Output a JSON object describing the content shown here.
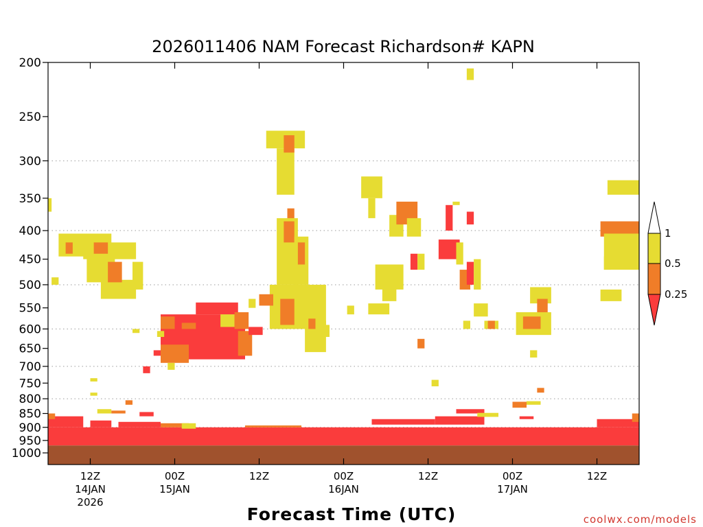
{
  "chart_data": {
    "type": "heatmap",
    "title": "2026011406 NAM Forecast Richardson# KAPN",
    "xlabel": "Forecast Time (UTC)",
    "ylabel": "",
    "credit": "coolwx.com/models",
    "y_axis": {
      "scale": "log-pressure",
      "range": [
        1000,
        200
      ],
      "reversed": true,
      "ticks": [
        "200",
        "250",
        "300",
        "350",
        "400",
        "450",
        "500",
        "550",
        "600",
        "650",
        "700",
        "750",
        "800",
        "850",
        "900",
        "950",
        "1000"
      ],
      "tick_values": [
        200,
        250,
        300,
        350,
        400,
        450,
        500,
        550,
        600,
        650,
        700,
        750,
        800,
        850,
        900,
        950,
        1000
      ],
      "grid_levels": [
        300,
        400,
        500,
        600,
        700,
        800,
        900,
        1000
      ]
    },
    "x_axis": {
      "range_hours": [
        0,
        84
      ],
      "ticks": [
        {
          "hour": 6,
          "lines": [
            "12Z",
            "14JAN",
            "2026"
          ]
        },
        {
          "hour": 18,
          "lines": [
            "00Z",
            "15JAN"
          ]
        },
        {
          "hour": 30,
          "lines": [
            "12Z"
          ]
        },
        {
          "hour": 42,
          "lines": [
            "00Z",
            "16JAN"
          ]
        },
        {
          "hour": 54,
          "lines": [
            "12Z"
          ]
        },
        {
          "hour": 66,
          "lines": [
            "00Z",
            "17JAN"
          ]
        },
        {
          "hour": 78,
          "lines": [
            "12Z"
          ]
        }
      ]
    },
    "legend": {
      "position": "right",
      "labels": [
        "1",
        "0.5",
        "0.25"
      ],
      "bins": [
        {
          "range": "0.5-1",
          "color": "#e6dc32"
        },
        {
          "range": "0.25-0.5",
          "color": "#f07d28"
        },
        {
          "range": "<0.25",
          "color": "#fa3c3c"
        }
      ]
    },
    "colors": {
      "band_high": "#e6dc32",
      "band_mid": "#f07d28",
      "band_low": "#fa3c3c",
      "ground": "#a0522d"
    },
    "ground_below_hpa": 970,
    "regions": [
      {
        "t": [
          0,
          84
        ],
        "p": [
          970,
          900
        ],
        "cls": "low"
      },
      {
        "t": [
          0,
          5
        ],
        "p": [
          900,
          860
        ],
        "cls": "low"
      },
      {
        "t": [
          6,
          9
        ],
        "p": [
          900,
          875
        ],
        "cls": "low"
      },
      {
        "t": [
          10,
          16
        ],
        "p": [
          900,
          880
        ],
        "cls": "low"
      },
      {
        "t": [
          16,
          20
        ],
        "p": [
          900,
          885
        ],
        "cls": "mid"
      },
      {
        "t": [
          19,
          21
        ],
        "p": [
          905,
          885
        ],
        "cls": "high"
      },
      {
        "t": [
          28,
          36
        ],
        "p": [
          900,
          893
        ],
        "cls": "mid"
      },
      {
        "t": [
          46,
          55
        ],
        "p": [
          890,
          870
        ],
        "cls": "low"
      },
      {
        "t": [
          55,
          62
        ],
        "p": [
          890,
          860
        ],
        "cls": "low"
      },
      {
        "t": [
          58,
          62
        ],
        "p": [
          850,
          835
        ],
        "cls": "low"
      },
      {
        "t": [
          61,
          64
        ],
        "p": [
          862,
          848
        ],
        "cls": "high"
      },
      {
        "t": [
          66,
          68
        ],
        "p": [
          830,
          810
        ],
        "cls": "mid"
      },
      {
        "t": [
          68,
          70
        ],
        "p": [
          820,
          808
        ],
        "cls": "high"
      },
      {
        "t": [
          67,
          69
        ],
        "p": [
          870,
          860
        ],
        "cls": "low"
      },
      {
        "t": [
          78,
          84
        ],
        "p": [
          900,
          870
        ],
        "cls": "low"
      },
      {
        "t": [
          83,
          84
        ],
        "p": [
          880,
          850
        ],
        "cls": "mid"
      },
      {
        "t": [
          0,
          1
        ],
        "p": [
          870,
          850
        ],
        "cls": "mid"
      },
      {
        "t": [
          7,
          9
        ],
        "p": [
          850,
          835
        ],
        "cls": "high"
      },
      {
        "t": [
          9,
          11
        ],
        "p": [
          850,
          840
        ],
        "cls": "mid"
      },
      {
        "t": [
          11,
          12
        ],
        "p": [
          820,
          805
        ],
        "cls": "mid"
      },
      {
        "t": [
          13,
          15
        ],
        "p": [
          860,
          845
        ],
        "cls": "low"
      },
      {
        "t": [
          6,
          7
        ],
        "p": [
          790,
          780
        ],
        "cls": "high"
      },
      {
        "t": [
          6,
          7
        ],
        "p": [
          745,
          735
        ],
        "cls": "high"
      },
      {
        "t": [
          1.5,
          9
        ],
        "p": [
          445,
          405
        ],
        "cls": "high"
      },
      {
        "t": [
          5,
          12.5
        ],
        "p": [
          450,
          420
        ],
        "cls": "high"
      },
      {
        "t": [
          5.5,
          9.5
        ],
        "p": [
          495,
          440
        ],
        "cls": "high"
      },
      {
        "t": [
          7.5,
          12.5
        ],
        "p": [
          530,
          490
        ],
        "cls": "high"
      },
      {
        "t": [
          12,
          13.5
        ],
        "p": [
          510,
          455
        ],
        "cls": "high"
      },
      {
        "t": [
          6.5,
          8.5
        ],
        "p": [
          440,
          420
        ],
        "cls": "mid"
      },
      {
        "t": [
          8.5,
          10.5
        ],
        "p": [
          495,
          455
        ],
        "cls": "mid"
      },
      {
        "t": [
          2.5,
          3.5
        ],
        "p": [
          440,
          420
        ],
        "cls": "mid"
      },
      {
        "t": [
          0.5,
          1.5
        ],
        "p": [
          500,
          485
        ],
        "cls": "high"
      },
      {
        "t": [
          0,
          0.5
        ],
        "p": [
          370,
          350
        ],
        "cls": "high"
      },
      {
        "t": [
          16,
          28
        ],
        "p": [
          680,
          565
        ],
        "cls": "low"
      },
      {
        "t": [
          21,
          27
        ],
        "p": [
          565,
          538
        ],
        "cls": "low"
      },
      {
        "t": [
          24.5,
          26.5
        ],
        "p": [
          595,
          565
        ],
        "cls": "high"
      },
      {
        "t": [
          16,
          18
        ],
        "p": [
          600,
          570
        ],
        "cls": "mid"
      },
      {
        "t": [
          16,
          20
        ],
        "p": [
          690,
          640
        ],
        "cls": "mid"
      },
      {
        "t": [
          27,
          29
        ],
        "p": [
          670,
          605
        ],
        "cls": "mid"
      },
      {
        "t": [
          26.5,
          28.5
        ],
        "p": [
          600,
          560
        ],
        "cls": "mid"
      },
      {
        "t": [
          19,
          21
        ],
        "p": [
          600,
          585
        ],
        "cls": "mid"
      },
      {
        "t": [
          15.5,
          16.5
        ],
        "p": [
          620,
          605
        ],
        "cls": "high"
      },
      {
        "t": [
          17,
          18
        ],
        "p": [
          710,
          690
        ],
        "cls": "high"
      },
      {
        "t": [
          12,
          13
        ],
        "p": [
          610,
          600
        ],
        "cls": "high"
      },
      {
        "t": [
          13.5,
          14.5
        ],
        "p": [
          720,
          700
        ],
        "cls": "low"
      },
      {
        "t": [
          15,
          16
        ],
        "p": [
          670,
          655
        ],
        "cls": "low"
      },
      {
        "t": [
          28.5,
          30.5
        ],
        "p": [
          615,
          595
        ],
        "cls": "low"
      },
      {
        "t": [
          31,
          36.5
        ],
        "p": [
          285,
          265
        ],
        "cls": "high"
      },
      {
        "t": [
          32.5,
          35
        ],
        "p": [
          345,
          285
        ],
        "cls": "high"
      },
      {
        "t": [
          33.5,
          35
        ],
        "p": [
          290,
          270
        ],
        "cls": "mid"
      },
      {
        "t": [
          34,
          35
        ],
        "p": [
          390,
          365
        ],
        "cls": "mid"
      },
      {
        "t": [
          32.5,
          35.5
        ],
        "p": [
          500,
          380
        ],
        "cls": "high"
      },
      {
        "t": [
          33.5,
          35
        ],
        "p": [
          420,
          385
        ],
        "cls": "mid"
      },
      {
        "t": [
          35,
          37
        ],
        "p": [
          500,
          410
        ],
        "cls": "high"
      },
      {
        "t": [
          35.5,
          36.5
        ],
        "p": [
          460,
          420
        ],
        "cls": "mid"
      },
      {
        "t": [
          31.5,
          39.5
        ],
        "p": [
          600,
          500
        ],
        "cls": "high"
      },
      {
        "t": [
          33,
          35
        ],
        "p": [
          590,
          530
        ],
        "cls": "mid"
      },
      {
        "t": [
          30,
          32
        ],
        "p": [
          545,
          520
        ],
        "cls": "mid"
      },
      {
        "t": [
          36.5,
          39.5
        ],
        "p": [
          660,
          580
        ],
        "cls": "high"
      },
      {
        "t": [
          37,
          38
        ],
        "p": [
          600,
          575
        ],
        "cls": "mid"
      },
      {
        "t": [
          39,
          40
        ],
        "p": [
          620,
          590
        ],
        "cls": "high"
      },
      {
        "t": [
          42.5,
          43.5
        ],
        "p": [
          565,
          545
        ],
        "cls": "high"
      },
      {
        "t": [
          28.5,
          29.5
        ],
        "p": [
          550,
          530
        ],
        "cls": "high"
      },
      {
        "t": [
          44.5,
          47.5
        ],
        "p": [
          350,
          320
        ],
        "cls": "high"
      },
      {
        "t": [
          45.5,
          46.5
        ],
        "p": [
          380,
          350
        ],
        "cls": "high"
      },
      {
        "t": [
          48.5,
          50.5
        ],
        "p": [
          410,
          375
        ],
        "cls": "high"
      },
      {
        "t": [
          49.5,
          52.5
        ],
        "p": [
          390,
          355
        ],
        "cls": "mid"
      },
      {
        "t": [
          51,
          53
        ],
        "p": [
          410,
          380
        ],
        "cls": "high"
      },
      {
        "t": [
          46.5,
          50.5
        ],
        "p": [
          510,
          460
        ],
        "cls": "high"
      },
      {
        "t": [
          47.5,
          49.5
        ],
        "p": [
          535,
          500
        ],
        "cls": "high"
      },
      {
        "t": [
          45.5,
          48.5
        ],
        "p": [
          565,
          540
        ],
        "cls": "high"
      },
      {
        "t": [
          51.5,
          52.5
        ],
        "p": [
          470,
          440
        ],
        "cls": "low"
      },
      {
        "t": [
          52.5,
          53.5
        ],
        "p": [
          470,
          440
        ],
        "cls": "high"
      },
      {
        "t": [
          55.5,
          58.5
        ],
        "p": [
          450,
          415
        ],
        "cls": "low"
      },
      {
        "t": [
          56.5,
          57.5
        ],
        "p": [
          400,
          360
        ],
        "cls": "low"
      },
      {
        "t": [
          59.5,
          60.5
        ],
        "p": [
          390,
          370
        ],
        "cls": "low"
      },
      {
        "t": [
          57.5,
          58.5
        ],
        "p": [
          360,
          355
        ],
        "cls": "high"
      },
      {
        "t": [
          58,
          59
        ],
        "p": [
          460,
          420
        ],
        "cls": "high"
      },
      {
        "t": [
          58.5,
          60
        ],
        "p": [
          510,
          470
        ],
        "cls": "mid"
      },
      {
        "t": [
          59.5,
          60.5
        ],
        "p": [
          500,
          455
        ],
        "cls": "low"
      },
      {
        "t": [
          60.5,
          61.5
        ],
        "p": [
          510,
          450
        ],
        "cls": "high"
      },
      {
        "t": [
          59.5,
          60.5
        ],
        "p": [
          215,
          205
        ],
        "cls": "high"
      },
      {
        "t": [
          52.5,
          53.5
        ],
        "p": [
          650,
          625
        ],
        "cls": "mid"
      },
      {
        "t": [
          54.5,
          55.5
        ],
        "p": [
          760,
          740
        ],
        "cls": "high"
      },
      {
        "t": [
          59,
          60
        ],
        "p": [
          600,
          580
        ],
        "cls": "high"
      },
      {
        "t": [
          60.5,
          62.5
        ],
        "p": [
          570,
          540
        ],
        "cls": "high"
      },
      {
        "t": [
          62,
          64
        ],
        "p": [
          600,
          580
        ],
        "cls": "high"
      },
      {
        "t": [
          62.5,
          63.5
        ],
        "p": [
          600,
          580
        ],
        "cls": "mid"
      },
      {
        "t": [
          66.5,
          71.5
        ],
        "p": [
          615,
          560
        ],
        "cls": "high"
      },
      {
        "t": [
          67.5,
          70
        ],
        "p": [
          600,
          570
        ],
        "cls": "mid"
      },
      {
        "t": [
          68.5,
          71.5
        ],
        "p": [
          540,
          505
        ],
        "cls": "high"
      },
      {
        "t": [
          69.5,
          71
        ],
        "p": [
          560,
          530
        ],
        "cls": "mid"
      },
      {
        "t": [
          68.5,
          69.5
        ],
        "p": [
          675,
          655
        ],
        "cls": "high"
      },
      {
        "t": [
          69.5,
          70.5
        ],
        "p": [
          780,
          765
        ],
        "cls": "mid"
      },
      {
        "t": [
          79.5,
          84
        ],
        "p": [
          345,
          325
        ],
        "cls": "high"
      },
      {
        "t": [
          78.5,
          84
        ],
        "p": [
          410,
          385
        ],
        "cls": "mid"
      },
      {
        "t": [
          79,
          84
        ],
        "p": [
          470,
          405
        ],
        "cls": "high"
      },
      {
        "t": [
          78.5,
          81.5
        ],
        "p": [
          535,
          510
        ],
        "cls": "high"
      },
      {
        "t": [
          79,
          80
        ],
        "p": [
          470,
          445
        ],
        "cls": "high"
      }
    ]
  }
}
